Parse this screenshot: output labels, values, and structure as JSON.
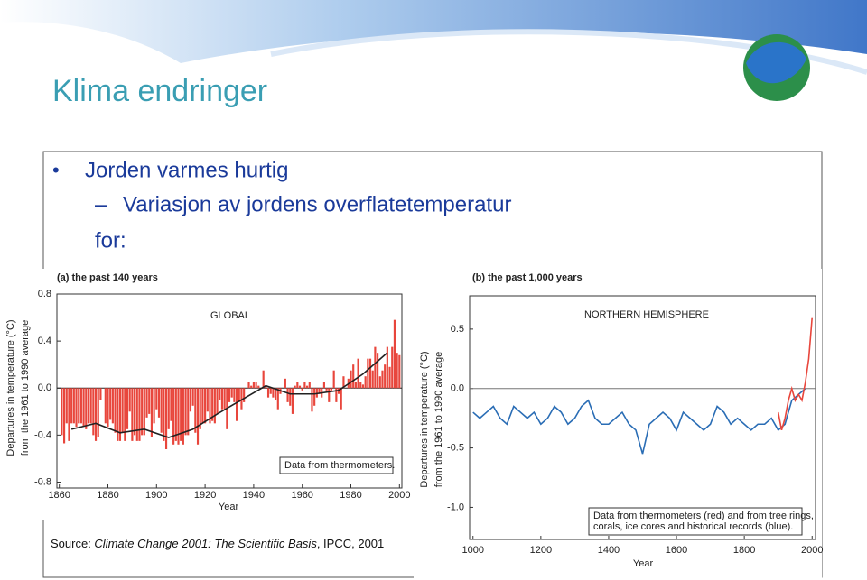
{
  "slide": {
    "title": "Klima endringer",
    "bullets": [
      "Jorden varmes hurtig"
    ],
    "sub_bullets": [
      "Variasjon av jordens overflatetemperatur",
      "for:"
    ],
    "source": [
      "Source: ",
      "Climate Change 2001: The Scientific Basis",
      ", IPCC, 2001"
    ]
  },
  "chart_data": [
    {
      "type": "bar",
      "title": "(a) the past 140 years",
      "annotation": "GLOBAL",
      "note": [
        "Data from thermometers."
      ],
      "xlabel": "Year",
      "ylabel": [
        "Departures in temperature (°C)",
        "from the 1961 to 1990 average"
      ],
      "xlim": [
        1859,
        2001
      ],
      "xticks": [
        1860,
        1880,
        1900,
        1920,
        1940,
        1960,
        1980,
        2000
      ],
      "ylim": [
        -0.85,
        0.8
      ],
      "yticks": [
        0.8,
        0.4,
        {
          "value": 0,
          "label": "0.0"
        },
        -0.4,
        -0.8
      ],
      "series": [
        {
          "color": "#e8463c",
          "x": [
            1861,
            1862,
            1863,
            1864,
            1865,
            1866,
            1867,
            1868,
            1869,
            1870,
            1871,
            1872,
            1873,
            1874,
            1875,
            1876,
            1877,
            1878,
            1879,
            1880,
            1881,
            1882,
            1883,
            1884,
            1885,
            1886,
            1887,
            1888,
            1889,
            1890,
            1891,
            1892,
            1893,
            1894,
            1895,
            1896,
            1897,
            1898,
            1899,
            1900,
            1901,
            1902,
            1903,
            1904,
            1905,
            1906,
            1907,
            1908,
            1909,
            1910,
            1911,
            1912,
            1913,
            1914,
            1915,
            1916,
            1917,
            1918,
            1919,
            1920,
            1921,
            1922,
            1923,
            1924,
            1925,
            1926,
            1927,
            1928,
            1929,
            1930,
            1931,
            1932,
            1933,
            1934,
            1935,
            1936,
            1937,
            1938,
            1939,
            1940,
            1941,
            1942,
            1943,
            1944,
            1945,
            1946,
            1947,
            1948,
            1949,
            1950,
            1951,
            1952,
            1953,
            1954,
            1955,
            1956,
            1957,
            1958,
            1959,
            1960,
            1961,
            1962,
            1963,
            1964,
            1965,
            1966,
            1967,
            1968,
            1969,
            1970,
            1971,
            1972,
            1973,
            1974,
            1975,
            1976,
            1977,
            1978,
            1979,
            1980,
            1981,
            1982,
            1983,
            1984,
            1985,
            1986,
            1987,
            1988,
            1989,
            1990,
            1991,
            1992,
            1993,
            1994,
            1995,
            1996,
            1997,
            1998,
            1999,
            2000
          ],
          "values": [
            -0.4,
            -0.47,
            -0.3,
            -0.45,
            -0.3,
            -0.3,
            -0.33,
            -0.3,
            -0.3,
            -0.32,
            -0.35,
            -0.3,
            -0.3,
            -0.4,
            -0.45,
            -0.42,
            -0.1,
            0.0,
            -0.3,
            -0.33,
            -0.27,
            -0.3,
            -0.38,
            -0.45,
            -0.45,
            -0.38,
            -0.45,
            -0.35,
            -0.2,
            -0.45,
            -0.4,
            -0.45,
            -0.45,
            -0.4,
            -0.4,
            -0.25,
            -0.22,
            -0.42,
            -0.3,
            -0.18,
            -0.25,
            -0.38,
            -0.45,
            -0.52,
            -0.35,
            -0.28,
            -0.48,
            -0.45,
            -0.48,
            -0.45,
            -0.48,
            -0.4,
            -0.4,
            -0.2,
            -0.15,
            -0.38,
            -0.48,
            -0.35,
            -0.3,
            -0.3,
            -0.2,
            -0.3,
            -0.28,
            -0.3,
            -0.22,
            -0.1,
            -0.18,
            -0.18,
            -0.35,
            -0.12,
            -0.08,
            -0.12,
            -0.28,
            -0.12,
            -0.18,
            -0.12,
            0.0,
            0.05,
            0.02,
            0.05,
            0.05,
            0.02,
            0.0,
            0.15,
            0.02,
            -0.08,
            -0.05,
            -0.08,
            -0.1,
            -0.18,
            -0.05,
            0.0,
            0.08,
            -0.12,
            -0.15,
            -0.22,
            0.02,
            0.05,
            0.02,
            -0.02,
            0.05,
            0.02,
            0.05,
            -0.2,
            -0.15,
            -0.08,
            -0.05,
            -0.08,
            0.05,
            -0.02,
            -0.12,
            -0.02,
            0.15,
            -0.12,
            -0.05,
            -0.18,
            0.1,
            0.0,
            0.08,
            0.15,
            0.2,
            0.05,
            0.25,
            0.05,
            0.03,
            0.1,
            0.25,
            0.25,
            0.15,
            0.35,
            0.3,
            0.1,
            0.15,
            0.2,
            0.35,
            0.18,
            0.35,
            0.58,
            0.3,
            0.28
          ]
        },
        {
          "color": "#222222",
          "axis": "smooth",
          "x": [
            1865,
            1875,
            1885,
            1895,
            1905,
            1915,
            1925,
            1935,
            1945,
            1955,
            1965,
            1975,
            1985,
            1995
          ],
          "values": [
            -0.35,
            -0.3,
            -0.38,
            -0.35,
            -0.42,
            -0.35,
            -0.22,
            -0.1,
            0.02,
            -0.05,
            -0.05,
            -0.02,
            0.12,
            0.3
          ]
        }
      ]
    },
    {
      "type": "line",
      "title": "(b) the past 1,000 years",
      "annotation": "NORTHERN HEMISPHERE",
      "note": [
        "Data from thermometers (red) and from tree rings,",
        "corals, ice cores and historical records (blue)."
      ],
      "xlabel": "Year",
      "ylabel": [
        "Departures in temperature (°C)",
        "from the 1961 to 1990 average"
      ],
      "xlim": [
        990,
        2010
      ],
      "xticks": [
        1000,
        1200,
        1400,
        1600,
        1800,
        2000
      ],
      "ylim": [
        -1.27,
        0.78
      ],
      "yticks": [
        0.5,
        {
          "value": 0,
          "label": "0.0"
        },
        -0.5,
        {
          "value": -1,
          "label": "-1.0"
        }
      ],
      "series": [
        {
          "color": "#2a6db5",
          "x": [
            1000,
            1020,
            1040,
            1060,
            1080,
            1100,
            1120,
            1140,
            1160,
            1180,
            1200,
            1220,
            1240,
            1260,
            1280,
            1300,
            1320,
            1340,
            1360,
            1380,
            1400,
            1420,
            1440,
            1460,
            1480,
            1500,
            1520,
            1540,
            1560,
            1580,
            1600,
            1620,
            1640,
            1660,
            1680,
            1700,
            1720,
            1740,
            1760,
            1780,
            1800,
            1820,
            1840,
            1860,
            1880,
            1900,
            1920,
            1940,
            1960,
            1980
          ],
          "values": [
            -0.2,
            -0.25,
            -0.2,
            -0.15,
            -0.25,
            -0.3,
            -0.15,
            -0.2,
            -0.25,
            -0.2,
            -0.3,
            -0.25,
            -0.15,
            -0.2,
            -0.3,
            -0.25,
            -0.15,
            -0.1,
            -0.25,
            -0.3,
            -0.3,
            -0.25,
            -0.2,
            -0.3,
            -0.35,
            -0.55,
            -0.3,
            -0.25,
            -0.2,
            -0.25,
            -0.35,
            -0.2,
            -0.25,
            -0.3,
            -0.35,
            -0.3,
            -0.15,
            -0.2,
            -0.3,
            -0.25,
            -0.3,
            -0.35,
            -0.3,
            -0.3,
            -0.25,
            -0.35,
            -0.3,
            -0.1,
            -0.05,
            0.0
          ]
        },
        {
          "color": "#e8463c",
          "x": [
            1900,
            1910,
            1920,
            1930,
            1940,
            1950,
            1960,
            1970,
            1980,
            1990,
            2000
          ],
          "values": [
            -0.2,
            -0.35,
            -0.25,
            -0.1,
            0.0,
            -0.1,
            -0.05,
            -0.1,
            0.05,
            0.25,
            0.6
          ]
        }
      ]
    }
  ]
}
